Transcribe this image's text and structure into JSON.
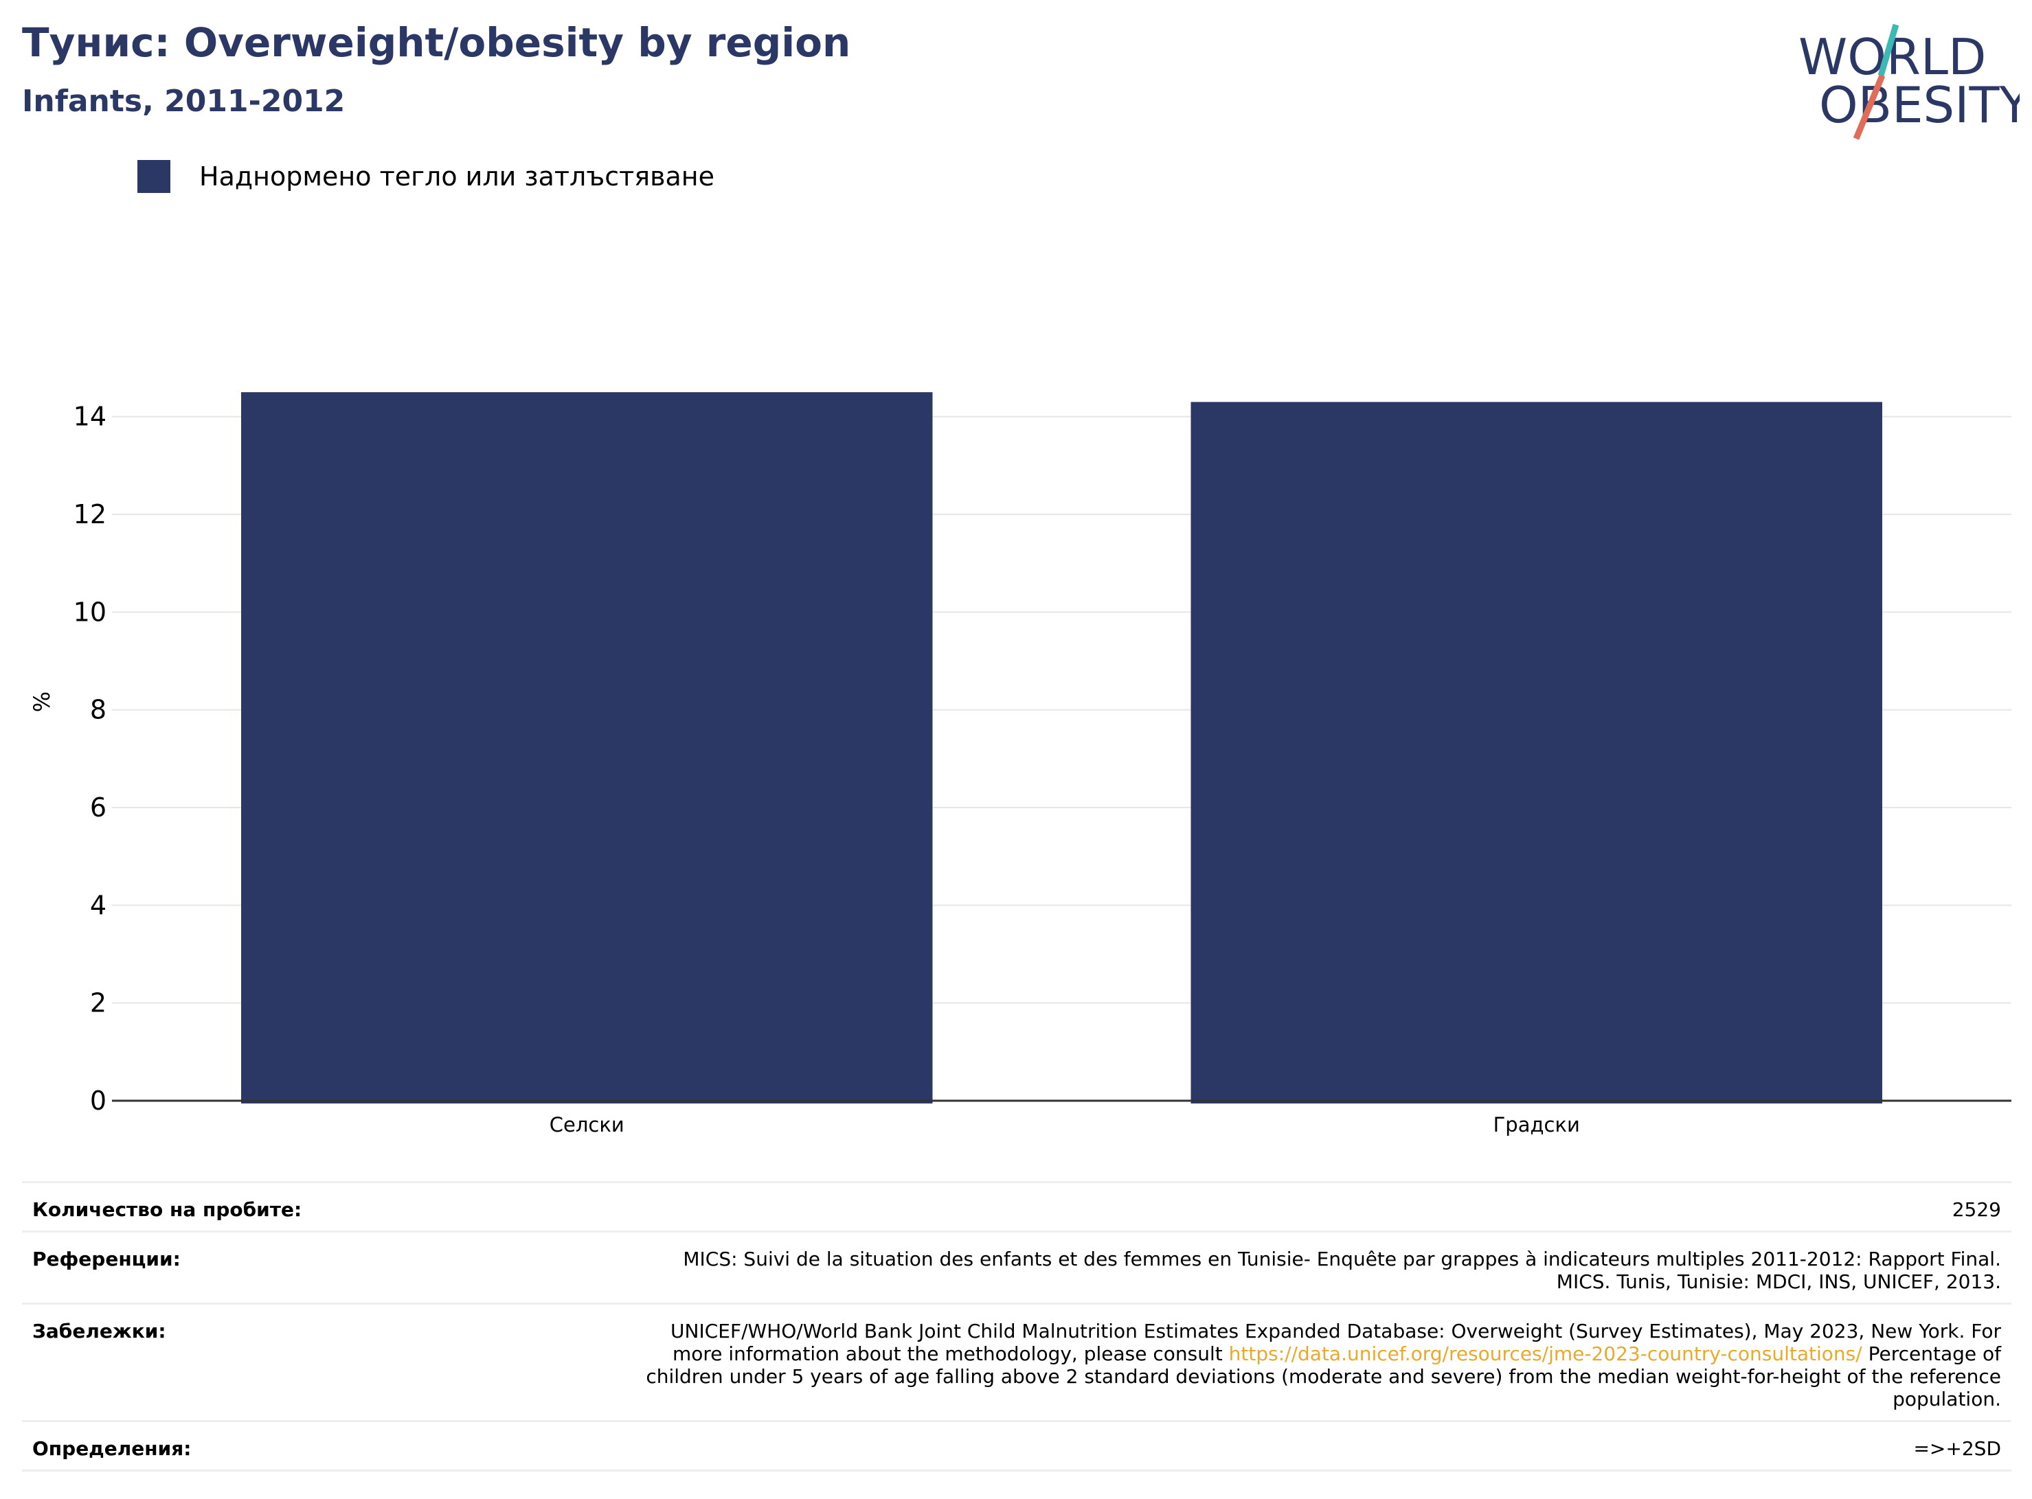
{
  "header": {
    "title": "Тунис: Overweight/obesity by region",
    "subtitle": "Infants, 2011-2012"
  },
  "logo": {
    "line1": "WORLD",
    "line2": "OBESITY",
    "colors": {
      "text": "#2b3764",
      "teal": "#3cb8b5",
      "coral": "#e06c5a"
    }
  },
  "legend": {
    "label": "Наднормено тегло или затлъстяване",
    "color": "#2b3764"
  },
  "chart_data": {
    "type": "bar",
    "categories": [
      "Селски",
      "Градски"
    ],
    "series": [
      {
        "name": "Наднормено тегло или затлъстяване",
        "values": [
          14.5,
          14.3
        ],
        "color": "#2b3764"
      }
    ],
    "ylabel": "%",
    "yticks": [
      0,
      2,
      4,
      6,
      8,
      10,
      12,
      14
    ],
    "ylim": [
      0,
      15.5
    ],
    "grid": true,
    "legend_position": "top-left"
  },
  "info": {
    "sample_size": {
      "label": "Количество на пробите:",
      "value": "2529"
    },
    "references": {
      "label": "Референции:",
      "line1": "MICS: Suivi de la situation des enfants et des femmes en Tunisie- Enquête par grappes à indicateurs multiples 2011-2012: Rapport Final.",
      "line2": "MICS. Tunis, Tunisie: MDCI, INS, UNICEF, 2013."
    },
    "notes": {
      "label": "Забележки:",
      "line1": "UNICEF/WHO/World Bank Joint Child Malnutrition Estimates Expanded Database: Overweight (Survey Estimates), May 2023, New York. For",
      "line2_before": "more information about the methodology, please consult ",
      "link": "https://data.unicef.org/resources/jme-2023-country-consultations/",
      "line2_after": " Percentage of",
      "line3": "children under 5 years of age falling above 2 standard deviations (moderate and severe) from the median weight-for-height of the reference",
      "line4": "population."
    },
    "definitions": {
      "label": "Определения:",
      "value": "=>+2SD"
    }
  }
}
